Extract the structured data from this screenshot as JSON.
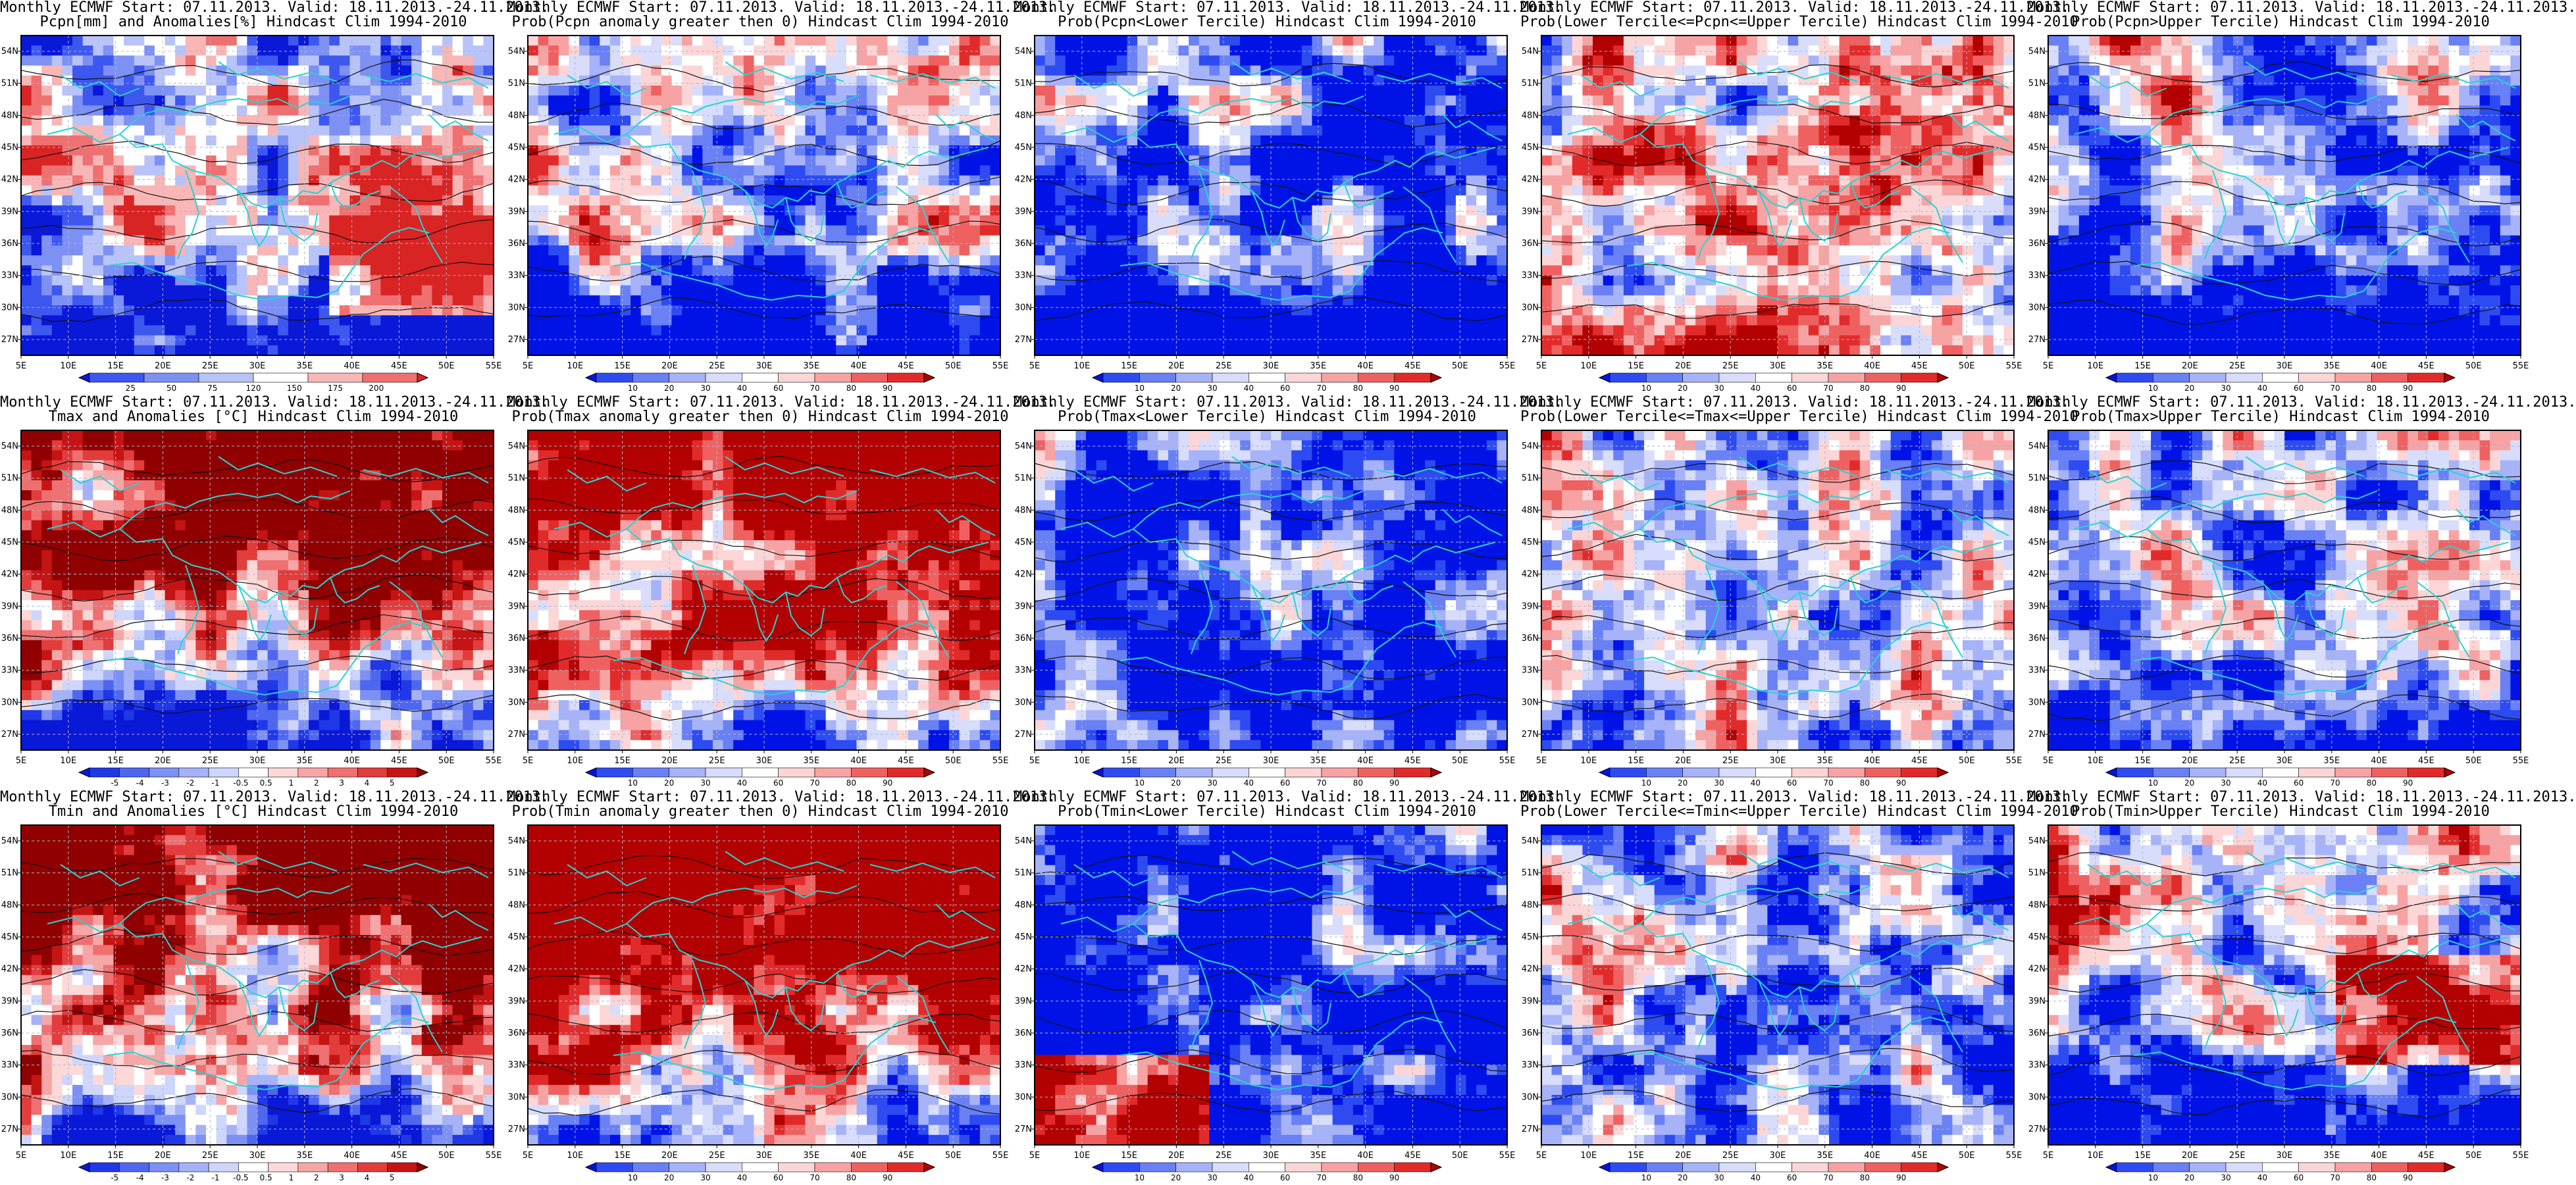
{
  "colors": {
    "frame": "#000000",
    "coast": "#27d3d3",
    "contour": "#111111",
    "grid": "#a7b8d0"
  },
  "map": {
    "lon_ticks": [
      "5E",
      "10E",
      "15E",
      "20E",
      "25E",
      "30E",
      "35E",
      "40E",
      "45E",
      "50E",
      "55E"
    ],
    "lat_ticks": [
      "27N",
      "30N",
      "33N",
      "36N",
      "39N",
      "42N",
      "45N",
      "48N",
      "51N",
      "54N"
    ]
  },
  "rows": [
    {
      "id": "pcpn",
      "panels": [
        {
          "title1": "Monthly ECMWF Start: 07.11.2013. Valid: 18.11.2013.-24.11.2013.",
          "title2": "Pcpn[mm] and Anomalies[%] Hindcast Clim 1994-2010",
          "field": "pcpn_anom",
          "colorbar": "pcpn_pct",
          "level": 0.5
        },
        {
          "title1": "Monthly ECMWF Start: 07.11.2013. Valid: 18.11.2013.-24.11.2013.",
          "title2": "Prob(Pcpn anomaly greater then 0) Hindcast Clim 1994-2010",
          "field": "pcpn_pgt0",
          "colorbar": "prob",
          "level": 0.38
        },
        {
          "title1": "Monthly ECMWF Start: 07.11.2013. Valid: 18.11.2013.-24.11.2013.",
          "title2": "Prob(Pcpn<Lower Tercile) Hindcast Clim 1994-2010",
          "field": "pcpn_low",
          "colorbar": "prob",
          "level": 0.3
        },
        {
          "title1": "Monthly ECMWF Start: 07.11.2013. Valid: 18.11.2013.-24.11.2013.",
          "title2": "Prob(Lower Tercile<=Pcpn<=Upper Tercile) Hindcast Clim 1994-2010",
          "field": "pcpn_mid",
          "colorbar": "prob",
          "level": 0.45
        },
        {
          "title1": "Monthly ECMWF Start: 07.11.2013. Valid: 18.11.2013.-24.11.2013.",
          "title2": "Prob(Pcpn>Upper Tercile) Hindcast Clim 1994-2010",
          "field": "pcpn_up",
          "colorbar": "prob",
          "level": 0.4
        }
      ]
    },
    {
      "id": "tmax",
      "panels": [
        {
          "title1": "Monthly ECMWF Start: 07.11.2013. Valid: 18.11.2013.-24.11.2013.",
          "title2": "Tmax and Anomalies [°C] Hindcast Clim 1994-2010",
          "field": "tmax_anom",
          "colorbar": "anom",
          "level": 0.62
        },
        {
          "title1": "Monthly ECMWF Start: 07.11.2013. Valid: 18.11.2013.-24.11.2013.",
          "title2": "Prob(Tmax anomaly greater then 0) Hindcast Clim 1994-2010",
          "field": "tmax_pgt0",
          "colorbar": "prob",
          "level": 0.66
        },
        {
          "title1": "Monthly ECMWF Start: 07.11.2013. Valid: 18.11.2013.-24.11.2013.",
          "title2": "Prob(Tmax<Lower Tercile) Hindcast Clim 1994-2010",
          "field": "tmax_low",
          "colorbar": "prob",
          "level": 0.28
        },
        {
          "title1": "Monthly ECMWF Start: 07.11.2013. Valid: 18.11.2013.-24.11.2013.",
          "title2": "Prob(Lower Tercile<=Tmax<=Upper Tercile) Hindcast Clim 1994-2010",
          "field": "tmax_mid",
          "colorbar": "prob",
          "level": 0.45
        },
        {
          "title1": "Monthly ECMWF Start: 07.11.2013. Valid: 18.11.2013.-24.11.2013.",
          "title2": "Prob(Tmax>Upper Tercile) Hindcast Clim 1994-2010",
          "field": "tmax_up",
          "colorbar": "prob",
          "level": 0.5
        }
      ]
    },
    {
      "id": "tmin",
      "panels": [
        {
          "title1": "Monthly ECMWF Start: 07.11.2013. Valid: 18.11.2013.-24.11.2013.",
          "title2": "Tmin and Anomalies [°C] Hindcast Clim 1994-2010",
          "field": "tmin_anom",
          "colorbar": "anom",
          "level": 0.62
        },
        {
          "title1": "Monthly ECMWF Start: 07.11.2013. Valid: 18.11.2013.-24.11.2013.",
          "title2": "Prob(Tmin anomaly greater then 0) Hindcast Clim 1994-2010",
          "field": "tmin_pgt0",
          "colorbar": "prob",
          "level": 0.66
        },
        {
          "title1": "Monthly ECMWF Start: 07.11.2013. Valid: 18.11.2013.-24.11.2013.",
          "title2": "Prob(Tmin<Lower Tercile) Hindcast Clim 1994-2010",
          "field": "tmin_low",
          "colorbar": "prob",
          "level": 0.28
        },
        {
          "title1": "Monthly ECMWF Start: 07.11.2013. Valid: 18.11.2013.-24.11.2013.",
          "title2": "Prob(Lower Tercile<=Tmin<=Upper Tercile) Hindcast Clim 1994-2010",
          "field": "tmin_mid",
          "colorbar": "prob",
          "level": 0.42
        },
        {
          "title1": "Monthly ECMWF Start: 07.11.2013. Valid: 18.11.2013.-24.11.2013.",
          "title2": "Prob(Tmin>Upper Tercile) Hindcast Clim 1994-2010",
          "field": "tmin_up",
          "colorbar": "prob",
          "level": 0.5
        }
      ]
    }
  ],
  "colorbars": {
    "prob": {
      "labels": [
        "10",
        "20",
        "30",
        "40",
        "60",
        "70",
        "80",
        "90"
      ],
      "colors": [
        "#0013e6",
        "#2d4bf1",
        "#6a80f5",
        "#a7b3f8",
        "#d8ddfb",
        "#ffffff",
        "#fcd6d6",
        "#f7a3a3",
        "#ef6161",
        "#e12b2b",
        "#b30000"
      ]
    },
    "anom": {
      "labels": [
        "-5",
        "-4",
        "-3",
        "-2",
        "-1",
        "-0.5",
        "0.5",
        "1",
        "2",
        "3",
        "4",
        "5"
      ],
      "colors": [
        "#0a18d8",
        "#2038e6",
        "#4f67ef",
        "#7d90f4",
        "#a5b2f7",
        "#ced6fb",
        "#ffffff",
        "#fcd8d8",
        "#f6a6a6",
        "#ef7070",
        "#e23c3c",
        "#c51414",
        "#900000"
      ]
    },
    "pcpn_pct": {
      "labels": [
        "25",
        "50",
        "75",
        "120",
        "150",
        "175",
        "200"
      ],
      "colors": [
        "#0a18d8",
        "#3d57ef",
        "#7d90f4",
        "#b8c3f8",
        "#ffffff",
        "#f8b6b6",
        "#ef7070",
        "#d92424"
      ]
    }
  }
}
